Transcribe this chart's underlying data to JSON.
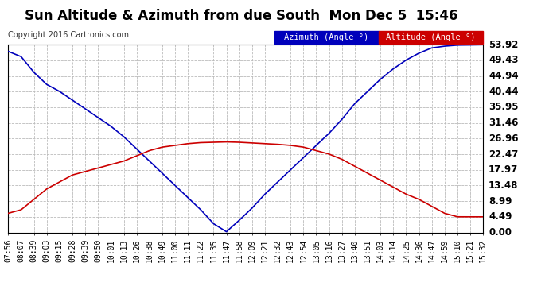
{
  "title": "Sun Altitude & Azimuth from due South  Mon Dec 5  15:46",
  "copyright": "Copyright 2016 Cartronics.com",
  "legend_azimuth": "Azimuth (Angle °)",
  "legend_altitude": "Altitude (Angle °)",
  "x_labels": [
    "07:56",
    "08:07",
    "08:39",
    "09:03",
    "09:15",
    "09:28",
    "09:39",
    "09:50",
    "10:01",
    "10:13",
    "10:26",
    "10:38",
    "10:49",
    "11:00",
    "11:11",
    "11:22",
    "11:35",
    "11:47",
    "11:58",
    "12:09",
    "12:21",
    "12:32",
    "12:43",
    "12:54",
    "13:05",
    "13:16",
    "13:27",
    "13:40",
    "13:51",
    "14:03",
    "14:14",
    "14:25",
    "14:36",
    "14:47",
    "14:59",
    "15:10",
    "15:21",
    "15:32"
  ],
  "y_ticks": [
    0.0,
    4.49,
    8.99,
    13.48,
    17.97,
    22.47,
    26.96,
    31.46,
    35.95,
    40.44,
    44.94,
    49.43,
    53.92
  ],
  "azimuth_values": [
    52.0,
    50.5,
    46.0,
    42.5,
    40.5,
    38.0,
    35.5,
    33.0,
    30.5,
    27.5,
    24.0,
    20.5,
    17.0,
    13.5,
    10.0,
    6.5,
    2.5,
    0.2,
    3.5,
    7.0,
    11.0,
    14.5,
    18.0,
    21.5,
    25.0,
    28.5,
    32.5,
    37.0,
    40.5,
    44.0,
    47.0,
    49.5,
    51.5,
    53.0,
    53.5,
    53.8,
    53.85,
    53.92
  ],
  "altitude_values": [
    5.5,
    6.5,
    9.5,
    12.5,
    14.5,
    16.5,
    17.5,
    18.5,
    19.5,
    20.5,
    22.0,
    23.5,
    24.5,
    25.0,
    25.5,
    25.8,
    25.9,
    26.0,
    25.9,
    25.7,
    25.5,
    25.3,
    25.0,
    24.5,
    23.5,
    22.5,
    21.0,
    19.0,
    17.0,
    15.0,
    13.0,
    11.0,
    9.5,
    7.5,
    5.5,
    4.5,
    4.49,
    4.49
  ],
  "azimuth_color": "#0000bb",
  "altitude_color": "#cc0000",
  "background_color": "#ffffff",
  "plot_bg_color": "#ffffff",
  "grid_color": "#bbbbbb",
  "title_fontsize": 12,
  "tick_fontsize": 7,
  "ylabel_right_fontsize": 8.5,
  "ymin": 0.0,
  "ymax": 53.92
}
